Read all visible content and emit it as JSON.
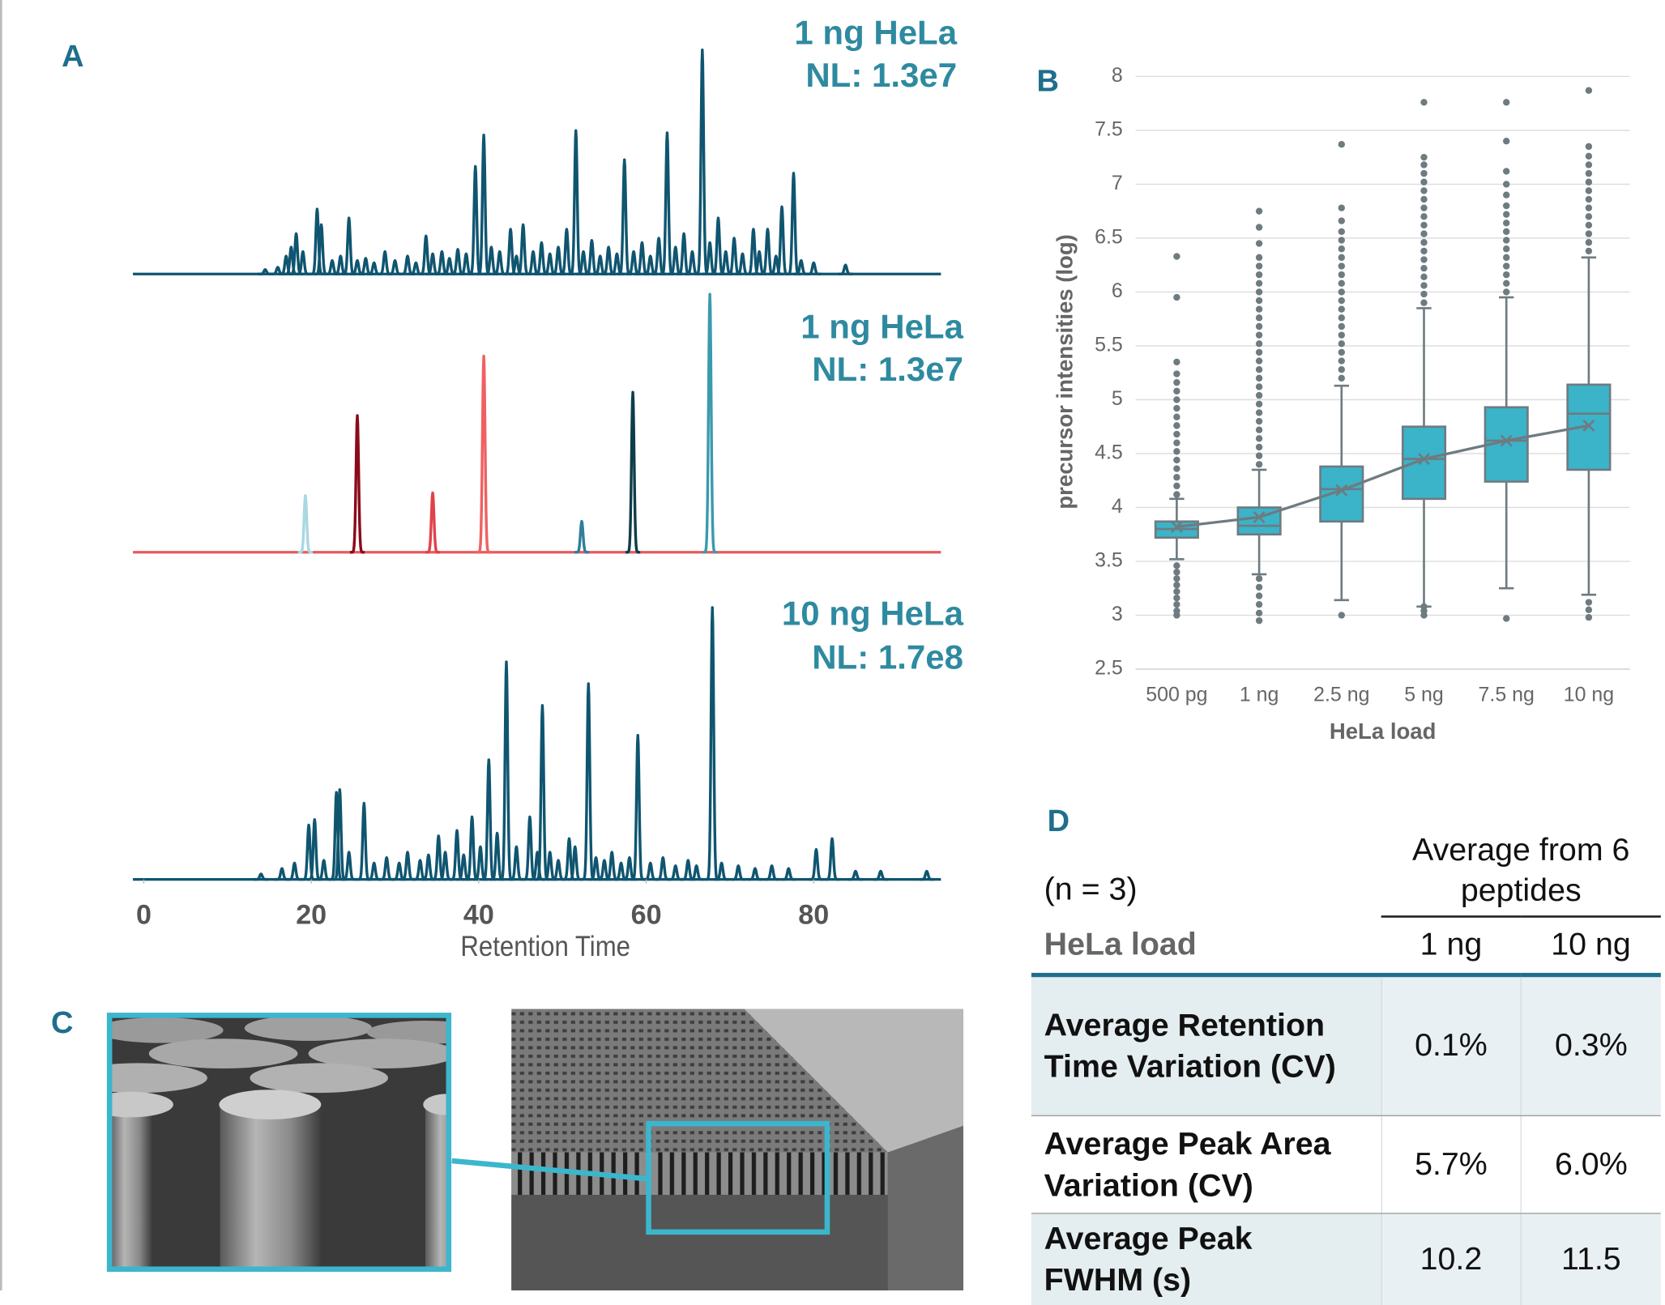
{
  "panel_labels": {
    "a": "A",
    "b": "B",
    "c": "C",
    "d": "D"
  },
  "chart_data": [
    {
      "type": "chromatogram",
      "title": "1 ng HeLa",
      "subtitle": "NL: 1.3e7",
      "color": "#0f5570",
      "xlim": [
        -1.3,
        95.2
      ],
      "series": [
        {
          "color": "#0f5570",
          "x": [
            14.5,
            16.0,
            17.0,
            17.6,
            18.2,
            19.0,
            20.7,
            21.2,
            22.5,
            23.5,
            24.5,
            25.5,
            26.5,
            27.5,
            28.8,
            30.0,
            31.5,
            32.5,
            33.7,
            34.5,
            35.6,
            36.5,
            37.5,
            38.5,
            39.6,
            40.6,
            41.5,
            42.5,
            43.8,
            44.5,
            45.3,
            46.5,
            47.5,
            48.5,
            49.5,
            50.5,
            51.6,
            52.5,
            53.5,
            54.5,
            55.5,
            56.5,
            57.4,
            58.5,
            59.5,
            60.5,
            61.5,
            62.5,
            63.5,
            64.5,
            65.5,
            66.7,
            67.6,
            68.6,
            69.5,
            70.5,
            71.5,
            72.8,
            73.5,
            74.5,
            75.5,
            76.2,
            77.6,
            78.5,
            80.0,
            83.8
          ],
          "values": [
            0.02,
            0.03,
            0.08,
            0.12,
            0.18,
            0.1,
            0.29,
            0.22,
            0.06,
            0.08,
            0.25,
            0.06,
            0.07,
            0.05,
            0.1,
            0.06,
            0.08,
            0.05,
            0.17,
            0.09,
            0.1,
            0.07,
            0.11,
            0.09,
            0.48,
            0.62,
            0.12,
            0.1,
            0.2,
            0.08,
            0.22,
            0.1,
            0.14,
            0.09,
            0.12,
            0.2,
            0.64,
            0.1,
            0.15,
            0.08,
            0.12,
            0.09,
            0.51,
            0.1,
            0.14,
            0.08,
            0.16,
            0.63,
            0.12,
            0.18,
            0.1,
            1.0,
            0.14,
            0.25,
            0.1,
            0.16,
            0.09,
            0.2,
            0.1,
            0.2,
            0.08,
            0.3,
            0.45,
            0.06,
            0.05,
            0.04
          ]
        }
      ]
    },
    {
      "type": "chromatogram",
      "title": "1 ng HeLa",
      "subtitle": "NL: 1.3e7",
      "color": "#e85a5e",
      "xlim": [
        -1.3,
        95.2
      ],
      "series": [
        {
          "color": "#a8d8e0",
          "x": [
            19.3
          ],
          "values": [
            0.22
          ]
        },
        {
          "color": "#8b0a1a",
          "x": [
            25.5
          ],
          "values": [
            0.53
          ]
        },
        {
          "color": "#e0424a",
          "x": [
            34.5
          ],
          "values": [
            0.23
          ]
        },
        {
          "color": "#f06060",
          "x": [
            40.6
          ],
          "values": [
            0.76
          ]
        },
        {
          "color": "#2e7f99",
          "x": [
            52.3
          ],
          "values": [
            0.12
          ]
        },
        {
          "color": "#0f3d4a",
          "x": [
            58.4
          ],
          "values": [
            0.62
          ]
        },
        {
          "color": "#3b9aae",
          "x": [
            67.6
          ],
          "values": [
            1.0
          ]
        }
      ]
    },
    {
      "type": "chromatogram",
      "title": "10 ng HeLa",
      "subtitle": "NL: 1.7e8",
      "color": "#0f5570",
      "xlim": [
        -1.3,
        95.2
      ],
      "xticks": [
        0,
        20,
        40,
        60,
        80
      ],
      "xlabel": "Retention Time",
      "series": [
        {
          "color": "#0f5570",
          "x": [
            14.0,
            16.5,
            18.0,
            19.7,
            20.4,
            21.5,
            23.0,
            23.4,
            24.5,
            26.3,
            27.5,
            29.0,
            30.5,
            31.5,
            33.0,
            34.0,
            35.2,
            36.0,
            37.4,
            38.2,
            39.2,
            40.2,
            41.2,
            42.2,
            43.3,
            44.5,
            46.1,
            47.0,
            47.6,
            48.5,
            49.5,
            50.8,
            51.5,
            53.1,
            54.0,
            55.0,
            55.9,
            57.0,
            58.0,
            59.0,
            60.5,
            62.0,
            63.5,
            65.0,
            66.0,
            67.9,
            69.0,
            71.0,
            73.0,
            75.0,
            77.0,
            80.3,
            82.2,
            85.0,
            88.0,
            93.5
          ],
          "values": [
            0.02,
            0.04,
            0.06,
            0.2,
            0.22,
            0.07,
            0.32,
            0.33,
            0.1,
            0.28,
            0.06,
            0.08,
            0.06,
            0.1,
            0.07,
            0.09,
            0.16,
            0.1,
            0.18,
            0.09,
            0.23,
            0.12,
            0.44,
            0.17,
            0.8,
            0.12,
            0.23,
            0.1,
            0.64,
            0.1,
            0.07,
            0.15,
            0.12,
            0.72,
            0.08,
            0.07,
            0.1,
            0.06,
            0.08,
            0.53,
            0.06,
            0.08,
            0.05,
            0.07,
            0.05,
            1.0,
            0.06,
            0.05,
            0.04,
            0.05,
            0.04,
            0.11,
            0.15,
            0.03,
            0.03,
            0.03
          ]
        }
      ]
    },
    {
      "type": "box",
      "xlabel": "HeLa load",
      "ylabel": "precursor intensities (log)",
      "color": "#3bb3c9",
      "line_color": "#6e7b80",
      "grid": true,
      "categories": [
        "500 pg",
        "1 ng",
        "2.5 ng",
        "5 ng",
        "7.5 ng",
        "10 ng"
      ],
      "ylim": [
        2.5,
        8
      ],
      "yticks": [
        2.5,
        3,
        3.5,
        4,
        4.5,
        5,
        5.5,
        6,
        6.5,
        7,
        7.5,
        8
      ],
      "q1": [
        3.72,
        3.75,
        3.87,
        4.08,
        4.24,
        4.35
      ],
      "median": [
        3.8,
        3.83,
        4.17,
        4.45,
        4.62,
        4.87
      ],
      "q3": [
        3.87,
        4.0,
        4.38,
        4.75,
        4.93,
        5.14
      ],
      "mean": [
        3.82,
        3.91,
        4.16,
        4.45,
        4.62,
        4.76
      ],
      "whisker_low": [
        3.52,
        3.38,
        3.14,
        3.08,
        3.25,
        3.19
      ],
      "whisker_high": [
        4.08,
        4.35,
        5.13,
        5.85,
        5.95,
        6.32
      ],
      "outliers": [
        [
          3.0,
          3.04,
          3.1,
          3.16,
          3.22,
          3.28,
          3.34,
          3.4,
          3.46,
          4.12,
          4.2,
          4.28,
          4.36,
          4.44,
          4.52,
          4.6,
          4.68,
          4.76,
          4.84,
          4.92,
          5.0,
          5.08,
          5.16,
          5.24,
          5.35,
          5.95,
          6.33
        ],
        [
          2.95,
          3.02,
          3.1,
          3.18,
          3.26,
          3.34,
          4.4,
          4.48,
          4.56,
          4.64,
          4.72,
          4.8,
          4.88,
          4.96,
          5.04,
          5.12,
          5.2,
          5.28,
          5.36,
          5.44,
          5.52,
          5.6,
          5.68,
          5.76,
          5.84,
          5.92,
          6.0,
          6.08,
          6.16,
          6.24,
          6.32,
          6.45,
          6.6,
          6.75
        ],
        [
          3.0,
          5.2,
          5.28,
          5.36,
          5.44,
          5.52,
          5.6,
          5.68,
          5.76,
          5.84,
          5.92,
          6.0,
          6.08,
          6.16,
          6.24,
          6.32,
          6.4,
          6.48,
          6.56,
          6.66,
          6.78,
          7.37
        ],
        [
          3.0,
          3.04,
          3.08,
          5.9,
          5.98,
          6.06,
          6.14,
          6.22,
          6.3,
          6.38,
          6.46,
          6.54,
          6.62,
          6.7,
          6.78,
          6.86,
          6.94,
          7.02,
          7.1,
          7.18,
          7.25,
          7.76
        ],
        [
          2.97,
          6.0,
          6.08,
          6.16,
          6.24,
          6.32,
          6.4,
          6.48,
          6.56,
          6.64,
          6.72,
          6.8,
          6.9,
          7.0,
          7.12,
          7.4,
          7.76
        ],
        [
          2.98,
          3.05,
          3.12,
          6.38,
          6.46,
          6.54,
          6.62,
          6.7,
          6.78,
          6.86,
          6.94,
          7.02,
          7.1,
          7.18,
          7.26,
          7.35,
          7.87
        ]
      ]
    }
  ],
  "table": {
    "n_label": "(n = 3)",
    "group_header": "Average from 6 peptides",
    "header": [
      "HeLa load",
      "1 ng",
      "10 ng"
    ],
    "rows": [
      [
        "Average Retention Time Variation (CV)",
        "0.1%",
        "0.3%"
      ],
      [
        "Average Peak Area Variation (CV)",
        "5.7%",
        "6.0%"
      ],
      [
        "Average Peak FWHM (s)",
        "10.2",
        "11.5"
      ]
    ]
  }
}
